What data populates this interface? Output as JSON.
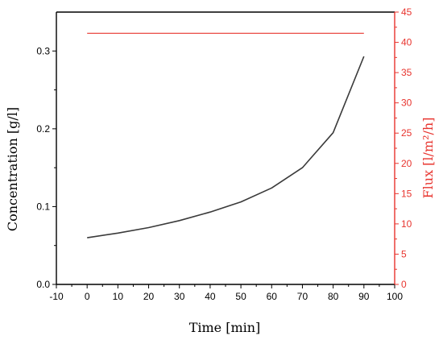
{
  "chart_data": {
    "type": "line",
    "xlabel": "Time [min]",
    "ylabel_left": "Concentration [g/l]",
    "ylabel_right": "Flux [l/m²/h]",
    "xlim": [
      -10,
      100
    ],
    "ylim_left": [
      0.0,
      0.35
    ],
    "ylim_right": [
      0,
      45
    ],
    "xticks": [
      "-10",
      "0",
      "10",
      "20",
      "30",
      "40",
      "50",
      "60",
      "70",
      "80",
      "90",
      "100"
    ],
    "yticks_left": [
      "0.0",
      "0.1",
      "0.2",
      "0.3"
    ],
    "yticks_right": [
      "0",
      "5",
      "10",
      "15",
      "20",
      "25",
      "30",
      "35",
      "40",
      "45"
    ],
    "grid": false,
    "colors": {
      "concentration": "#3a3a3a",
      "flux": "#e8342e",
      "axis_right": "#e8342e"
    },
    "series": [
      {
        "axis": "left",
        "x": [
          0,
          10,
          20,
          30,
          40,
          50,
          60,
          70,
          80,
          90
        ],
        "values": [
          0.06,
          0.066,
          0.073,
          0.082,
          0.093,
          0.106,
          0.124,
          0.15,
          0.195,
          0.293
        ]
      },
      {
        "axis": "right",
        "x": [
          0,
          90
        ],
        "values": [
          41.5,
          41.5
        ]
      }
    ]
  }
}
